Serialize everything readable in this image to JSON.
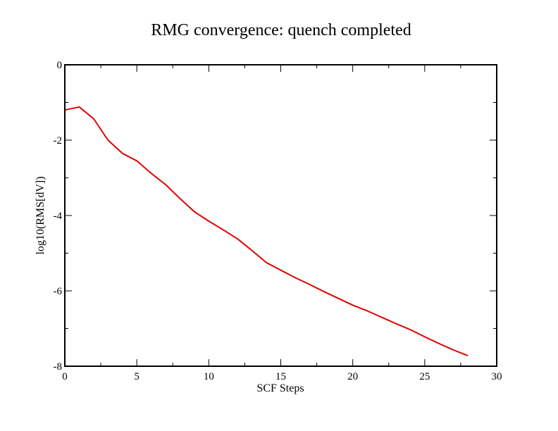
{
  "chart_data": {
    "type": "line",
    "title": "RMG convergence: quench completed",
    "xlabel": "SCF Steps",
    "ylabel": "log10(RMS[dV])",
    "xlim": [
      0,
      30
    ],
    "ylim": [
      -8,
      0
    ],
    "x_major_ticks": [
      0,
      5,
      10,
      15,
      20,
      25,
      30
    ],
    "x_minor_ticks": [
      2.5,
      7.5,
      12.5,
      17.5,
      22.5,
      27.5
    ],
    "y_major_ticks": [
      0,
      -2,
      -4,
      -6,
      -8
    ],
    "y_minor_ticks": [
      -1,
      -3,
      -5,
      -7
    ],
    "grid": false,
    "legend": "none",
    "series": [
      {
        "color": "#e00000",
        "x": [
          0,
          1,
          2,
          3,
          4,
          5,
          6,
          7,
          8,
          9,
          10,
          11,
          12,
          13,
          14,
          15,
          16,
          17,
          18,
          19,
          20,
          21,
          22,
          23,
          24,
          25,
          26,
          27,
          28
        ],
        "y": [
          -1.2,
          -1.12,
          -1.43,
          -2.0,
          -2.35,
          -2.55,
          -2.88,
          -3.18,
          -3.55,
          -3.9,
          -4.15,
          -4.38,
          -4.62,
          -4.93,
          -5.25,
          -5.45,
          -5.65,
          -5.83,
          -6.02,
          -6.2,
          -6.38,
          -6.53,
          -6.7,
          -6.87,
          -7.03,
          -7.22,
          -7.4,
          -7.57,
          -7.72
        ]
      }
    ]
  }
}
